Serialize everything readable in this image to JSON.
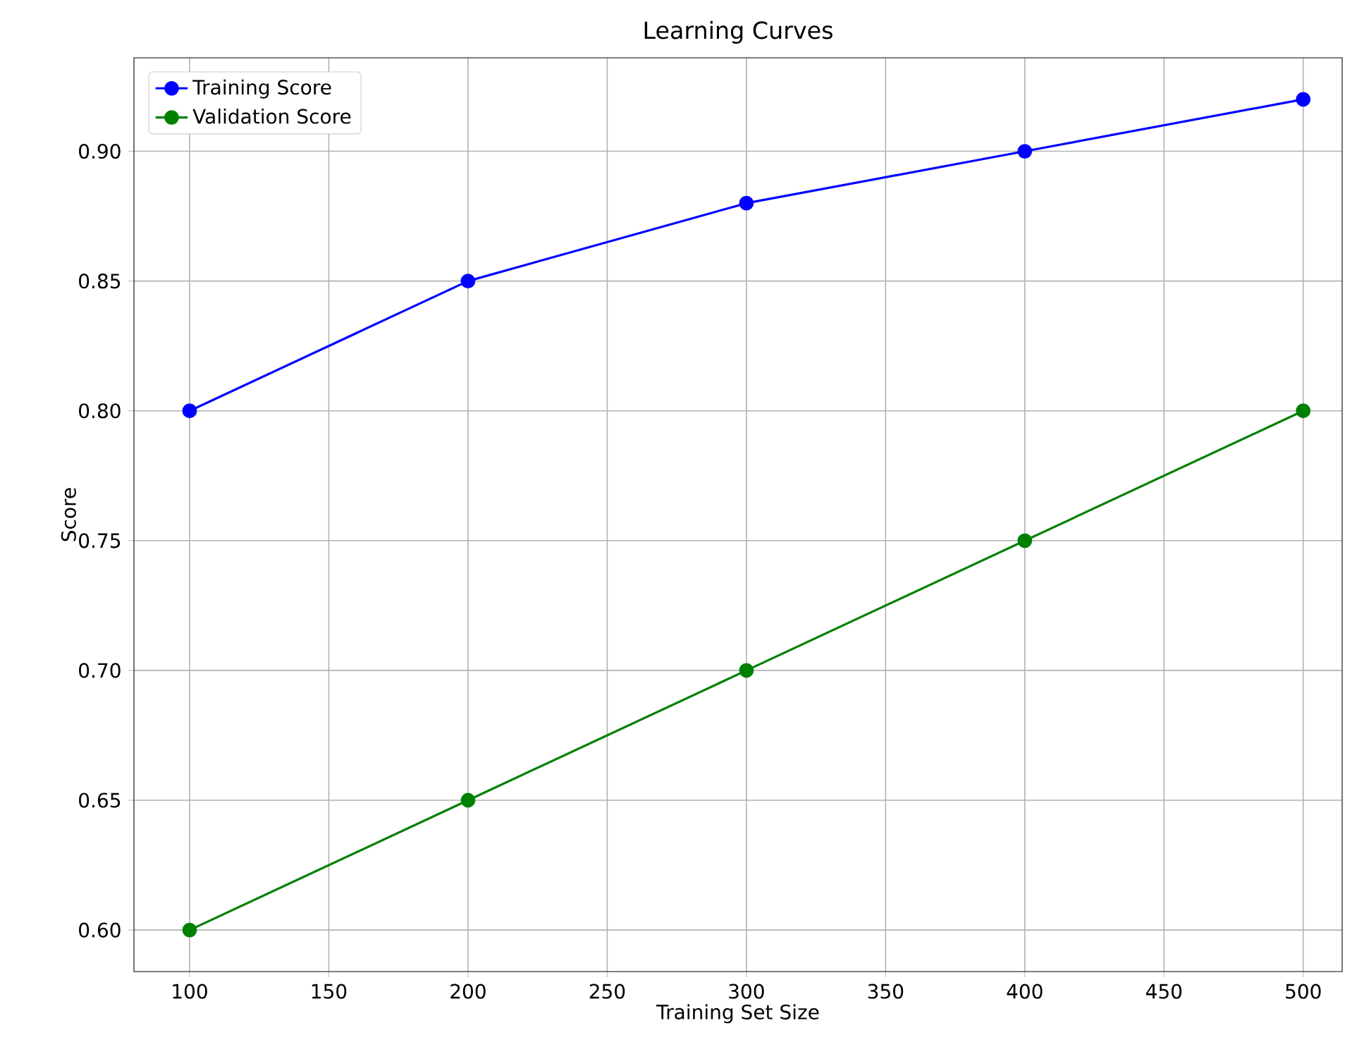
{
  "chart_data": {
    "type": "line",
    "title": "Learning Curves",
    "xlabel": "Training Set Size",
    "ylabel": "Score",
    "x": [
      100,
      200,
      300,
      400,
      500
    ],
    "series": [
      {
        "name": "Training Score",
        "color": "#0000ff",
        "values": [
          0.8,
          0.85,
          0.88,
          0.9,
          0.92
        ]
      },
      {
        "name": "Validation Score",
        "color": "#008000",
        "values": [
          0.6,
          0.65,
          0.7,
          0.75,
          0.8
        ]
      }
    ],
    "xlim": [
      80,
      514
    ],
    "ylim": [
      0.584,
      0.936
    ],
    "xticks": [
      100,
      150,
      200,
      250,
      300,
      350,
      400,
      450,
      500
    ],
    "yticks": [
      {
        "value": 0.6,
        "label": "0.60"
      },
      {
        "value": 0.65,
        "label": "0.65"
      },
      {
        "value": 0.7,
        "label": "0.70"
      },
      {
        "value": 0.75,
        "label": "0.75"
      },
      {
        "value": 0.8,
        "label": "0.80"
      },
      {
        "value": 0.85,
        "label": "0.85"
      },
      {
        "value": 0.9,
        "label": "0.90"
      }
    ],
    "grid": true,
    "legend": "top left",
    "marker": "circle",
    "line_style": "solid"
  }
}
